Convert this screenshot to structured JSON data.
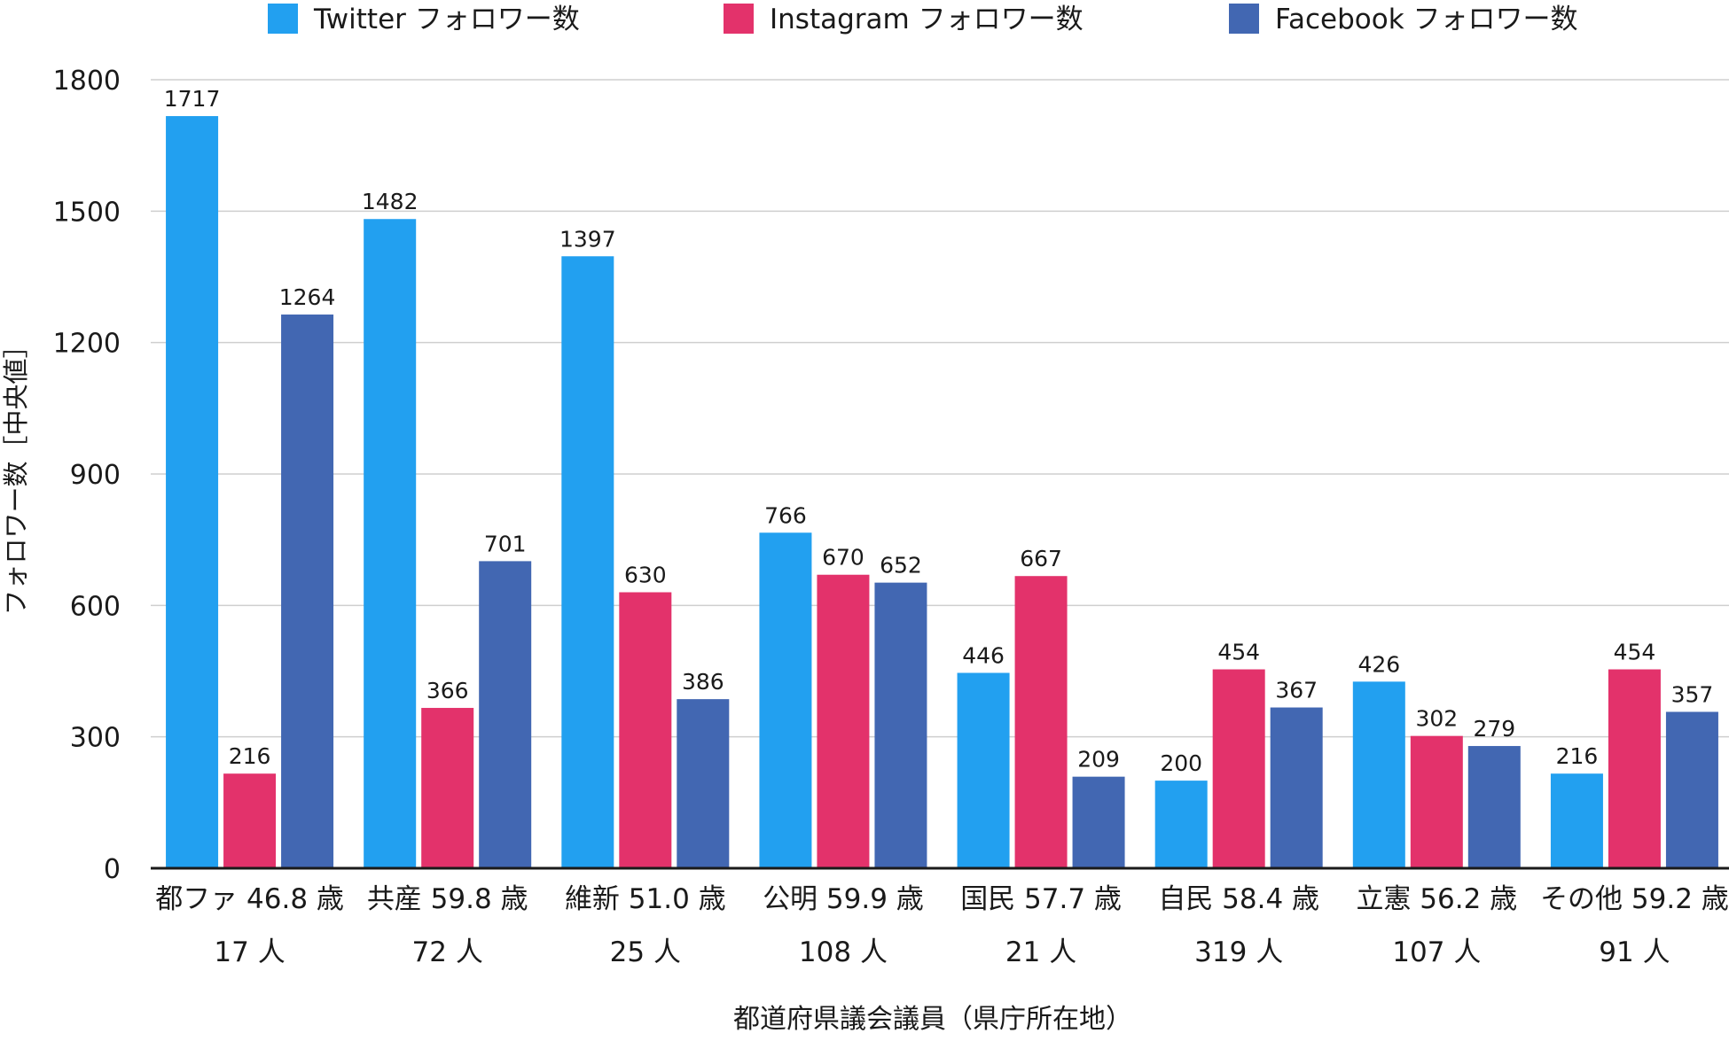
{
  "chart_data": {
    "type": "bar",
    "title": "",
    "xlabel": "都道府県議会議員（県庁所在地）",
    "ylabel": "フォロワー数［中央値］",
    "ylim": [
      0,
      1800
    ],
    "yticks": [
      0,
      300,
      600,
      900,
      1200,
      1500,
      1800
    ],
    "grid": true,
    "legend_position": "top",
    "categories": [
      {
        "line1": "都ファ 46.8 歳",
        "line2": "17 人"
      },
      {
        "line1": "共産 59.8 歳",
        "line2": "72 人"
      },
      {
        "line1": "維新 51.0 歳",
        "line2": "25 人"
      },
      {
        "line1": "公明 59.9 歳",
        "line2": "108 人"
      },
      {
        "line1": "国民 57.7 歳",
        "line2": "21 人"
      },
      {
        "line1": "自民 58.4 歳",
        "line2": "319 人"
      },
      {
        "line1": "立憲 56.2 歳",
        "line2": "107 人"
      },
      {
        "line1": "その他 59.2 歳",
        "line2": "91 人"
      }
    ],
    "series": [
      {
        "name": "Twitter フォロワー数",
        "color": "#22a0f0",
        "values": [
          1717,
          1482,
          1397,
          766,
          446,
          200,
          426,
          216
        ]
      },
      {
        "name": "Instagram フォロワー数",
        "color": "#e3326b",
        "values": [
          216,
          366,
          630,
          670,
          667,
          454,
          302,
          454
        ]
      },
      {
        "name": "Facebook フォロワー数",
        "color": "#4267b2",
        "values": [
          1264,
          701,
          386,
          652,
          209,
          367,
          279,
          357
        ]
      }
    ]
  }
}
